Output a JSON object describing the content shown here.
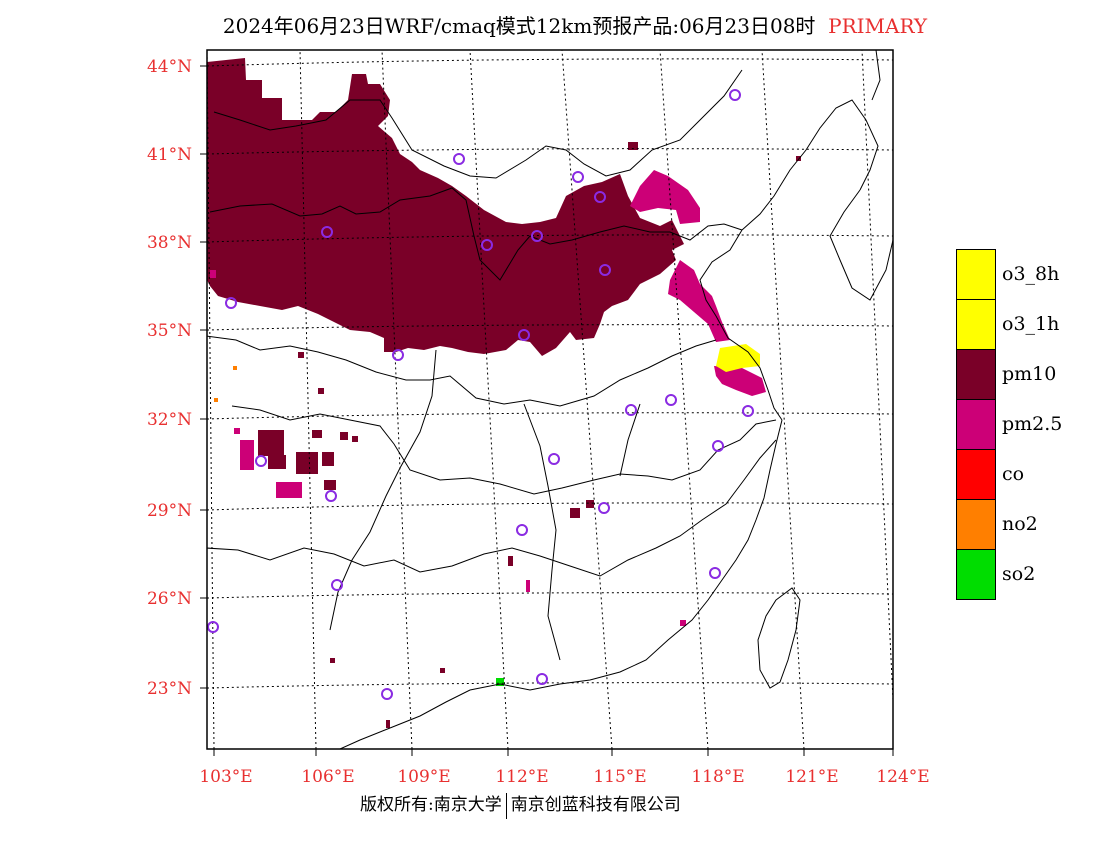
{
  "title": {
    "main": "2024年06月23日WRF/cmaq模式12km预报产品:06月23日08时",
    "tag": "PRIMARY"
  },
  "axes": {
    "lat_labels": [
      "44°N",
      "41°N",
      "38°N",
      "35°N",
      "32°N",
      "29°N",
      "26°N",
      "23°N"
    ],
    "lon_labels": [
      "103°E",
      "106°E",
      "109°E",
      "112°E",
      "115°E",
      "118°E",
      "121°E",
      "124°E"
    ]
  },
  "legend": [
    {
      "label": "o3_8h",
      "color": "#ffff00"
    },
    {
      "label": "o3_1h",
      "color": "#ffff00"
    },
    {
      "label": "pm10",
      "color": "#7a0028"
    },
    {
      "label": "pm2.5",
      "color": "#cc0077"
    },
    {
      "label": "co",
      "color": "#ff0000"
    },
    {
      "label": "no2",
      "color": "#ff7f00"
    },
    {
      "label": "so2",
      "color": "#00dd00"
    }
  ],
  "footer": {
    "left": "版权所有:南京大学",
    "right": "南京创蓝科技有限公司"
  },
  "colors": {
    "tick_text": "#e83030",
    "station_marker": "#8a2be2",
    "pm10": "#7a0028",
    "pm25": "#cc0077",
    "o3": "#ffff00"
  }
}
